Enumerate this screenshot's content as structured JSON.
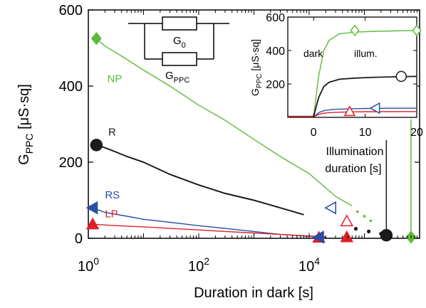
{
  "chart_data": [
    {
      "type": "line",
      "xscale": "log",
      "xlim": [
        1,
        1000000
      ],
      "ylim": [
        0,
        600
      ],
      "xlabel": "Duration in dark [s]",
      "ylabel": "G",
      "ylabel_sub": "PPC",
      "ylabel_unit": " [μS·sq]",
      "yticks": [
        0,
        200,
        400,
        600
      ],
      "xticks": [
        {
          "value": 1,
          "base": "10",
          "exp": "0"
        },
        {
          "value": 100,
          "base": "10",
          "exp": "2"
        },
        {
          "value": 10000,
          "base": "10",
          "exp": "4"
        }
      ],
      "grid": false,
      "series": [
        {
          "name": "NP",
          "color": "#5fba3b",
          "x": [
            1.4,
            2,
            3,
            5,
            10,
            30,
            100,
            300,
            1000,
            3000,
            10000,
            30000,
            60000
          ],
          "y": [
            525,
            505,
            490,
            470,
            442,
            400,
            350,
            310,
            260,
            215,
            170,
            110,
            85
          ],
          "marker": "diamond",
          "marker_at": [
            1.4,
            525
          ]
        },
        {
          "name": "R",
          "color": "#1a1a1a",
          "x": [
            1.4,
            2,
            3,
            5,
            10,
            30,
            100,
            300,
            1000,
            3000,
            8000
          ],
          "y": [
            245,
            238,
            228,
            215,
            200,
            168,
            140,
            118,
            100,
            80,
            62
          ],
          "marker": "circle",
          "marker_at": [
            1.4,
            245
          ]
        },
        {
          "name": "RS",
          "color": "#2b4ea8",
          "x": [
            1.2,
            2,
            5,
            10,
            30,
            100,
            300,
            1000,
            3000,
            10000,
            20000
          ],
          "y": [
            80,
            68,
            58,
            50,
            42,
            33,
            26,
            18,
            10,
            5,
            3
          ],
          "marker": "triangle-left",
          "marker_at": [
            1.2,
            80
          ]
        },
        {
          "name": "LP",
          "color": "#e01f26",
          "x": [
            1.2,
            2,
            5,
            10,
            30,
            100,
            300,
            1000,
            3000,
            10000,
            20000
          ],
          "y": [
            37,
            35,
            32,
            30,
            26,
            22,
            18,
            14,
            10,
            6,
            4
          ],
          "marker": "triangle-up",
          "marker_at": [
            1.2,
            37
          ]
        }
      ],
      "tail_points": {
        "R": [
          [
            70000,
            25
          ],
          [
            120000,
            18
          ],
          [
            200000,
            12
          ],
          [
            260000,
            10
          ]
        ],
        "NP": [
          [
            75000,
            70
          ],
          [
            100000,
            58
          ],
          [
            130000,
            46
          ]
        ]
      },
      "end_markers": [
        {
          "series": "LP",
          "x": 15000,
          "y": 2,
          "marker": "triangle-up",
          "filled": true
        },
        {
          "series": "LP",
          "x": 48000,
          "y": 3,
          "marker": "triangle-up",
          "filled": true
        },
        {
          "series": "RS",
          "x": 15000,
          "y": 3,
          "marker": "triangle-left",
          "filled": true
        },
        {
          "series": "R",
          "x": 250000,
          "y": 8,
          "marker": "circle",
          "filled": true
        },
        {
          "series": "NP",
          "x": 700000,
          "y": 3,
          "marker": "diamond",
          "filled": true
        },
        {
          "series": "RS",
          "x": 25000,
          "y": 80,
          "marker": "triangle-left",
          "filled": false
        },
        {
          "series": "LP",
          "x": 48000,
          "y": 45,
          "marker": "triangle-up",
          "filled": false
        }
      ],
      "drop_lines": [
        {
          "series": "R",
          "x": 250000,
          "y_top": 258,
          "y_bottom": 8
        },
        {
          "series": "NP",
          "x": 700000,
          "y_top": 535,
          "y_bottom": 3
        }
      ],
      "circuit": {
        "g0": "G",
        "g0_sub": "0",
        "gppc": "G",
        "gppc_sub": "PPC"
      }
    },
    {
      "type": "line",
      "inset": true,
      "xlabel_line1": "Illumination",
      "xlabel_line2": "duration [s]",
      "ylabel": "G",
      "ylabel_sub": "PPC",
      "ylabel_unit": " [μS·sq]",
      "xlim": [
        -5,
        20
      ],
      "ylim": [
        0,
        600
      ],
      "xticks": [
        "0",
        "10",
        "20"
      ],
      "xtick_values": [
        0,
        10,
        20
      ],
      "yticks": [
        "200",
        "400",
        "600"
      ],
      "ytick_values": [
        200,
        400,
        600
      ],
      "region_labels": {
        "dark": "dark",
        "illum": "illum."
      },
      "series": [
        {
          "name": "NP",
          "color": "#5fba3b",
          "x": [
            -5,
            0,
            1,
            2,
            3,
            5,
            8,
            12,
            20
          ],
          "y": [
            5,
            5,
            250,
            400,
            460,
            500,
            510,
            515,
            520
          ]
        },
        {
          "name": "R",
          "color": "#1a1a1a",
          "x": [
            -5,
            0,
            1,
            2,
            3,
            5,
            8,
            12,
            20
          ],
          "y": [
            5,
            5,
            120,
            185,
            210,
            228,
            235,
            240,
            245
          ]
        },
        {
          "name": "RS",
          "color": "#2b4ea8",
          "x": [
            -5,
            0,
            1,
            2,
            4,
            8,
            12,
            20
          ],
          "y": [
            3,
            3,
            28,
            40,
            48,
            52,
            54,
            55
          ]
        },
        {
          "name": "LP",
          "color": "#e01f26",
          "x": [
            -5,
            0,
            1,
            2,
            4,
            8,
            12,
            20
          ],
          "y": [
            3,
            3,
            18,
            25,
            30,
            33,
            34,
            35
          ]
        }
      ],
      "markers": [
        {
          "series": "NP",
          "x": 8,
          "y": 520,
          "marker": "diamond"
        },
        {
          "series": "NP",
          "x": 20,
          "y": 520,
          "marker": "diamond"
        },
        {
          "series": "R",
          "x": 17,
          "y": 245,
          "marker": "circle"
        },
        {
          "series": "RS",
          "x": 12,
          "y": 55,
          "marker": "triangle-left"
        },
        {
          "series": "LP",
          "x": 7,
          "y": 35,
          "marker": "triangle-up"
        }
      ]
    }
  ]
}
